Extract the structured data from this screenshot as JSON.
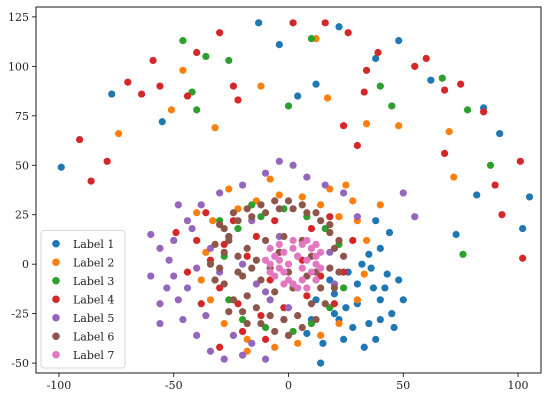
{
  "chart_data": {
    "type": "scatter",
    "title": "",
    "xlabel": "",
    "ylabel": "",
    "xlim": [
      -110,
      110
    ],
    "ylim": [
      -55,
      130
    ],
    "xticks": [
      -100,
      -50,
      0,
      50,
      100
    ],
    "yticks": [
      -50,
      -25,
      0,
      25,
      50,
      75,
      100,
      125
    ],
    "legend_position": "lower-left",
    "grid": false,
    "series": [
      {
        "name": "Label 1",
        "color": "#1f77b4",
        "points": [
          [
            -99,
            49
          ],
          [
            -77,
            86
          ],
          [
            -55,
            72
          ],
          [
            -13,
            122
          ],
          [
            -4,
            111
          ],
          [
            4,
            85
          ],
          [
            12,
            91
          ],
          [
            22,
            120
          ],
          [
            38,
            104
          ],
          [
            48,
            113
          ],
          [
            62,
            93
          ],
          [
            73,
            15
          ],
          [
            85,
            79
          ],
          [
            92,
            66
          ],
          [
            102,
            18
          ],
          [
            105,
            34
          ],
          [
            82,
            35
          ],
          [
            20,
            -15
          ],
          [
            25,
            -22
          ],
          [
            30,
            -10
          ],
          [
            35,
            -30
          ],
          [
            40,
            -18
          ],
          [
            43,
            -5
          ],
          [
            45,
            -25
          ],
          [
            38,
            -38
          ],
          [
            28,
            -32
          ],
          [
            15,
            -40
          ],
          [
            14,
            -50
          ],
          [
            10,
            -28
          ],
          [
            18,
            -8
          ],
          [
            32,
            0
          ],
          [
            40,
            8
          ],
          [
            44,
            16
          ],
          [
            38,
            22
          ],
          [
            36,
            -2
          ],
          [
            42,
            -12
          ],
          [
            50,
            -18
          ],
          [
            48,
            -8
          ],
          [
            24,
            -38
          ],
          [
            33,
            -42
          ],
          [
            22,
            -28
          ],
          [
            30,
            -20
          ],
          [
            12,
            -18
          ],
          [
            40,
            -28
          ],
          [
            46,
            -32
          ],
          [
            37,
            -12
          ],
          [
            26,
            -4
          ],
          [
            20,
            -25
          ],
          [
            8,
            -35
          ],
          [
            35,
            5
          ]
        ]
      },
      {
        "name": "Label 2",
        "color": "#ff7f0e",
        "points": [
          [
            -46,
            98
          ],
          [
            -74,
            66
          ],
          [
            -51,
            78
          ],
          [
            -32,
            69
          ],
          [
            -12,
            90
          ],
          [
            12,
            114
          ],
          [
            17,
            84
          ],
          [
            34,
            71
          ],
          [
            48,
            70
          ],
          [
            70,
            67
          ],
          [
            72,
            44
          ],
          [
            -40,
            26
          ],
          [
            -33,
            22
          ],
          [
            -22,
            28
          ],
          [
            -14,
            32
          ],
          [
            -4,
            35
          ],
          [
            6,
            34
          ],
          [
            14,
            30
          ],
          [
            22,
            24
          ],
          [
            30,
            22
          ],
          [
            34,
            12
          ],
          [
            33,
            -5
          ],
          [
            30,
            -18
          ],
          [
            22,
            -30
          ],
          [
            14,
            -36
          ],
          [
            4,
            -40
          ],
          [
            -6,
            -42
          ],
          [
            -18,
            -38
          ],
          [
            -28,
            -30
          ],
          [
            -34,
            -18
          ],
          [
            -38,
            -8
          ],
          [
            -36,
            6
          ],
          [
            25,
            40
          ],
          [
            18,
            38
          ],
          [
            28,
            32
          ],
          [
            -26,
            38
          ],
          [
            -8,
            43
          ],
          [
            40,
            30
          ],
          [
            -18,
            -44
          ]
        ]
      },
      {
        "name": "Label 3",
        "color": "#2ca02c",
        "points": [
          [
            -46,
            113
          ],
          [
            -36,
            105
          ],
          [
            -26,
            103
          ],
          [
            -42,
            87
          ],
          [
            -40,
            78
          ],
          [
            0,
            80
          ],
          [
            10,
            114
          ],
          [
            40,
            90
          ],
          [
            45,
            80
          ],
          [
            67,
            94
          ],
          [
            78,
            78
          ],
          [
            88,
            50
          ],
          [
            76,
            5
          ],
          [
            -30,
            22
          ],
          [
            -22,
            18
          ],
          [
            -12,
            24
          ],
          [
            -2,
            28
          ],
          [
            8,
            24
          ],
          [
            16,
            18
          ],
          [
            22,
            10
          ],
          [
            -28,
            4
          ],
          [
            -32,
            -8
          ],
          [
            -26,
            -18
          ],
          [
            -20,
            -28
          ],
          [
            -10,
            -32
          ],
          [
            2,
            -34
          ],
          [
            10,
            -30
          ],
          [
            18,
            -22
          ],
          [
            24,
            -12
          ],
          [
            -16,
            30
          ],
          [
            12,
            -8
          ]
        ]
      },
      {
        "name": "Label 4",
        "color": "#d62728",
        "points": [
          [
            -91,
            63
          ],
          [
            -86,
            42
          ],
          [
            -79,
            52
          ],
          [
            -70,
            92
          ],
          [
            -64,
            86
          ],
          [
            -59,
            103
          ],
          [
            -56,
            90
          ],
          [
            -44,
            85
          ],
          [
            -40,
            107
          ],
          [
            -30,
            117
          ],
          [
            -22,
            83
          ],
          [
            -24,
            90
          ],
          [
            2,
            122
          ],
          [
            16,
            122
          ],
          [
            26,
            117
          ],
          [
            34,
            98
          ],
          [
            33,
            87
          ],
          [
            39,
            107
          ],
          [
            55,
            100
          ],
          [
            60,
            104
          ],
          [
            68,
            88
          ],
          [
            68,
            56
          ],
          [
            75,
            91
          ],
          [
            85,
            77
          ],
          [
            90,
            40
          ],
          [
            93,
            25
          ],
          [
            101,
            52
          ],
          [
            102,
            3
          ],
          [
            -49,
            16
          ],
          [
            -36,
            26
          ],
          [
            -24,
            22
          ],
          [
            -14,
            14
          ],
          [
            -4,
            6
          ],
          [
            6,
            2
          ],
          [
            14,
            -6
          ],
          [
            8,
            -16
          ],
          [
            -2,
            -22
          ],
          [
            -12,
            -26
          ],
          [
            -22,
            -20
          ],
          [
            -30,
            -12
          ],
          [
            -34,
            2
          ],
          [
            -28,
            10
          ],
          [
            -18,
            4
          ],
          [
            -8,
            -8
          ],
          [
            2,
            -12
          ],
          [
            -30,
            -42
          ],
          [
            -20,
            -34
          ],
          [
            -10,
            -38
          ],
          [
            20,
            -20
          ],
          [
            24,
            -4
          ],
          [
            28,
            12
          ],
          [
            18,
            24
          ],
          [
            10,
            18
          ],
          [
            -6,
            22
          ],
          [
            -40,
            12
          ],
          [
            -44,
            -4
          ],
          [
            -38,
            -20
          ],
          [
            24,
            70
          ],
          [
            30,
            60
          ]
        ]
      },
      {
        "name": "Label 5",
        "color": "#9467bd",
        "points": [
          [
            -60,
            15
          ],
          [
            -56,
            8
          ],
          [
            -60,
            -6
          ],
          [
            -53,
            -12
          ],
          [
            -48,
            -18
          ],
          [
            -46,
            -28
          ],
          [
            -40,
            -36
          ],
          [
            -34,
            -44
          ],
          [
            -28,
            -48
          ],
          [
            -20,
            -46
          ],
          [
            -10,
            -48
          ],
          [
            -56,
            -20
          ],
          [
            -52,
            2
          ],
          [
            -50,
            12
          ],
          [
            -44,
            22
          ],
          [
            -38,
            30
          ],
          [
            -30,
            36
          ],
          [
            -20,
            40
          ],
          [
            -10,
            46
          ],
          [
            -4,
            52
          ],
          [
            2,
            50
          ],
          [
            8,
            44
          ],
          [
            16,
            40
          ],
          [
            24,
            36
          ],
          [
            30,
            24
          ],
          [
            -50,
            -6
          ],
          [
            -40,
            -2
          ],
          [
            -34,
            8
          ],
          [
            -26,
            14
          ],
          [
            -20,
            0
          ],
          [
            -14,
            -10
          ],
          [
            -8,
            -18
          ],
          [
            -2,
            -28
          ],
          [
            -24,
            -36
          ],
          [
            -16,
            -40
          ],
          [
            -36,
            -26
          ],
          [
            -44,
            -12
          ],
          [
            -48,
            30
          ],
          [
            50,
            36
          ],
          [
            55,
            24
          ],
          [
            -56,
            -30
          ],
          [
            -42,
            18
          ],
          [
            -16,
            22
          ],
          [
            -4,
            14
          ],
          [
            10,
            8
          ],
          [
            18,
            6
          ],
          [
            20,
            -10
          ],
          [
            0,
            -22
          ],
          [
            -10,
            -14
          ],
          [
            -30,
            -4
          ]
        ]
      },
      {
        "name": "Label 6",
        "color": "#8c564b",
        "points": [
          [
            -30,
            20
          ],
          [
            -26,
            12
          ],
          [
            -22,
            4
          ],
          [
            -20,
            -6
          ],
          [
            -18,
            -16
          ],
          [
            -14,
            -22
          ],
          [
            -8,
            -26
          ],
          [
            -2,
            -28
          ],
          [
            4,
            -26
          ],
          [
            10,
            -20
          ],
          [
            14,
            -12
          ],
          [
            18,
            -2
          ],
          [
            20,
            8
          ],
          [
            18,
            16
          ],
          [
            14,
            22
          ],
          [
            8,
            26
          ],
          [
            2,
            28
          ],
          [
            -4,
            28
          ],
          [
            -10,
            26
          ],
          [
            -16,
            24
          ],
          [
            -22,
            22
          ],
          [
            -26,
            14
          ],
          [
            -28,
            6
          ],
          [
            -30,
            -2
          ],
          [
            -28,
            -10
          ],
          [
            -24,
            -18
          ],
          [
            -20,
            -24
          ],
          [
            -12,
            -30
          ],
          [
            -6,
            -34
          ],
          [
            0,
            -36
          ],
          [
            6,
            -32
          ],
          [
            12,
            -28
          ],
          [
            16,
            -20
          ],
          [
            20,
            -12
          ],
          [
            22,
            -4
          ],
          [
            24,
            4
          ],
          [
            22,
            12
          ],
          [
            18,
            20
          ],
          [
            12,
            26
          ],
          [
            6,
            30
          ],
          [
            0,
            32
          ],
          [
            -6,
            32
          ],
          [
            -12,
            30
          ],
          [
            -18,
            28
          ],
          [
            -24,
            26
          ],
          [
            -28,
            18
          ],
          [
            -32,
            10
          ],
          [
            -34,
            0
          ],
          [
            -32,
            -8
          ],
          [
            -18,
            8
          ],
          [
            -10,
            12
          ],
          [
            -2,
            14
          ],
          [
            6,
            12
          ],
          [
            10,
            4
          ],
          [
            8,
            -6
          ],
          [
            2,
            -12
          ],
          [
            -6,
            -14
          ],
          [
            -12,
            -8
          ],
          [
            -14,
            2
          ],
          [
            -8,
            -2
          ],
          [
            0,
            -4
          ],
          [
            4,
            4
          ],
          [
            -4,
            6
          ],
          [
            -16,
            -2
          ],
          [
            12,
            -4
          ],
          [
            -22,
            -4
          ],
          [
            -18,
            -30
          ],
          [
            -26,
            -24
          ]
        ]
      },
      {
        "name": "Label 7",
        "color": "#e377c2",
        "points": [
          [
            -4,
            2
          ],
          [
            -2,
            -4
          ],
          [
            0,
            -8
          ],
          [
            2,
            -10
          ],
          [
            6,
            -8
          ],
          [
            10,
            -4
          ],
          [
            12,
            0
          ],
          [
            12,
            4
          ],
          [
            10,
            8
          ],
          [
            6,
            10
          ],
          [
            2,
            8
          ],
          [
            -2,
            6
          ],
          [
            -6,
            4
          ],
          [
            -8,
            0
          ],
          [
            -6,
            -6
          ],
          [
            -2,
            -10
          ],
          [
            4,
            -12
          ],
          [
            8,
            -12
          ],
          [
            12,
            -8
          ],
          [
            14,
            -2
          ],
          [
            14,
            6
          ],
          [
            12,
            10
          ],
          [
            8,
            12
          ],
          [
            2,
            12
          ],
          [
            -4,
            10
          ],
          [
            -8,
            8
          ],
          [
            -10,
            2
          ],
          [
            -8,
            -4
          ],
          [
            4,
            4
          ],
          [
            6,
            -2
          ],
          [
            0,
            0
          ],
          [
            8,
            2
          ],
          [
            -4,
            -2
          ]
        ]
      }
    ]
  }
}
